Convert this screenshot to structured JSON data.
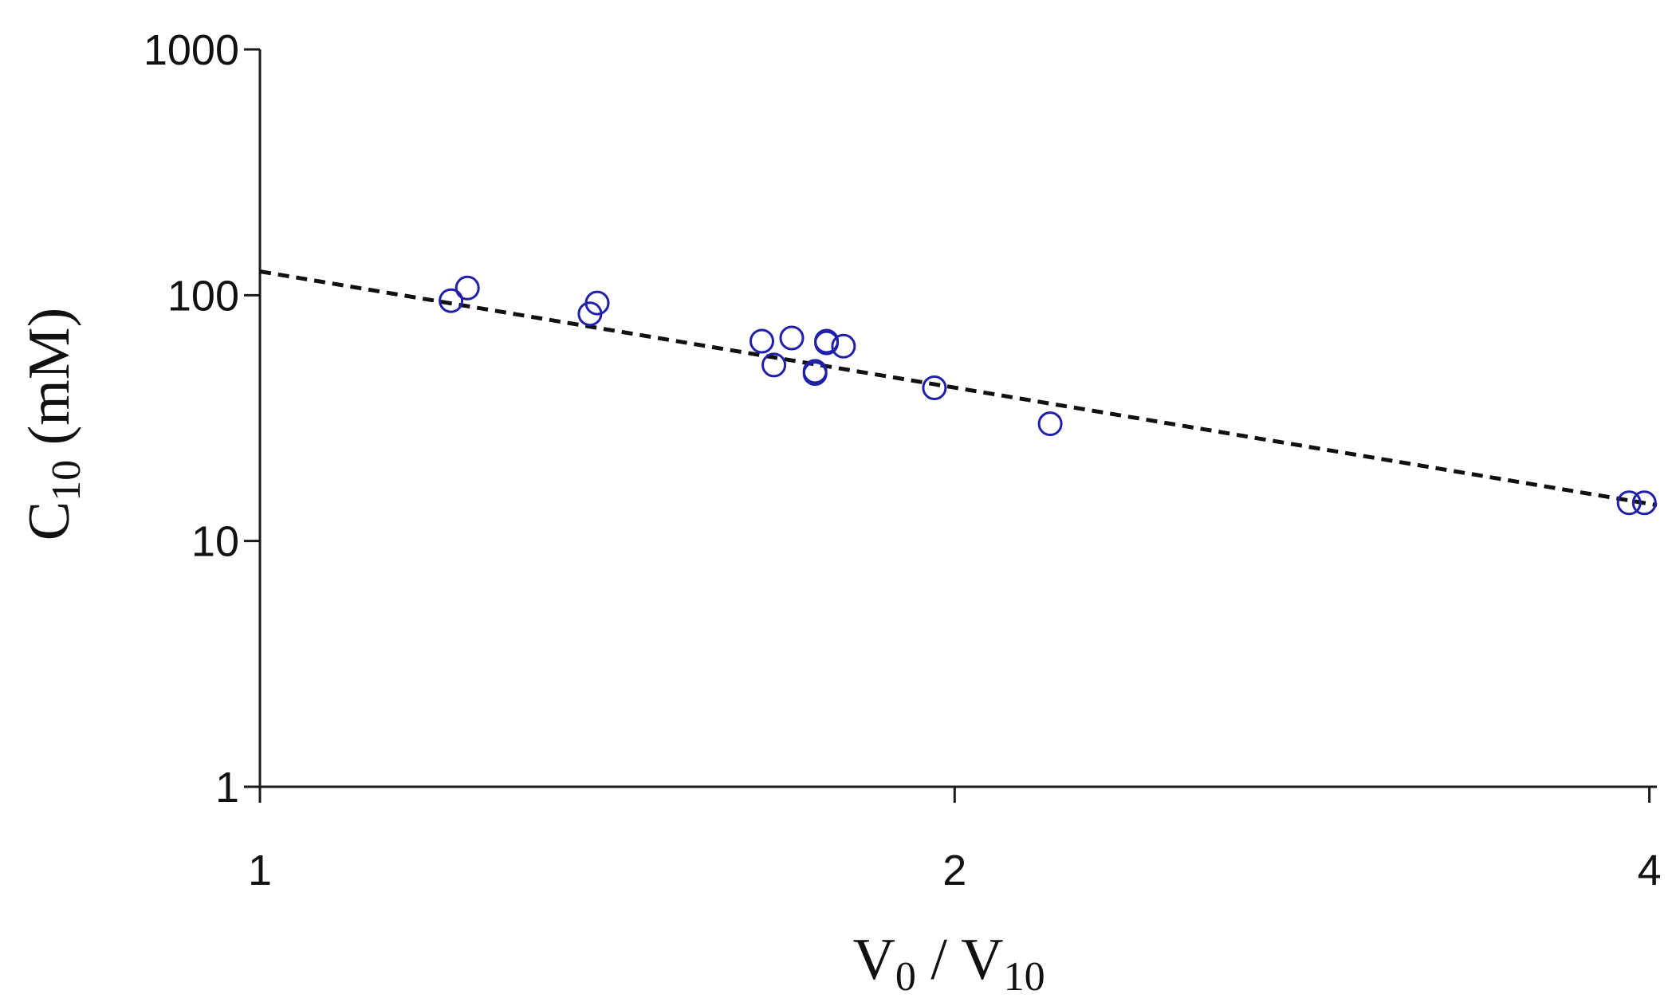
{
  "chart_data": {
    "type": "scatter",
    "title": "",
    "xlabel": {
      "main": "V",
      "sub1": "0",
      "mid": " / V",
      "sub2": "10"
    },
    "ylabel": {
      "main": "C",
      "sub": "10",
      "rest": " (mM)"
    },
    "x_scale": "log",
    "y_scale": "log",
    "xlim": [
      1,
      4.03
    ],
    "ylim": [
      1,
      1000
    ],
    "x_ticks": [
      1,
      2,
      4
    ],
    "x_tick_labels": [
      "1",
      "2",
      "4"
    ],
    "y_ticks": [
      1,
      10,
      100,
      1000
    ],
    "y_tick_labels": [
      "1",
      "10",
      "100",
      "1000"
    ],
    "grid": false,
    "legend": "none",
    "marker_color": "#1f1fa8",
    "series": [
      {
        "marker": "open-circle",
        "points": [
          {
            "x": 1.21,
            "y": 95
          },
          {
            "x": 1.23,
            "y": 107
          },
          {
            "x": 1.39,
            "y": 84
          },
          {
            "x": 1.4,
            "y": 93
          },
          {
            "x": 1.65,
            "y": 65
          },
          {
            "x": 1.67,
            "y": 52
          },
          {
            "x": 1.7,
            "y": 67
          },
          {
            "x": 1.74,
            "y": 48
          },
          {
            "x": 1.74,
            "y": 49
          },
          {
            "x": 1.76,
            "y": 64
          },
          {
            "x": 1.76,
            "y": 65
          },
          {
            "x": 1.79,
            "y": 62
          },
          {
            "x": 1.96,
            "y": 42
          },
          {
            "x": 2.2,
            "y": 30
          },
          {
            "x": 3.92,
            "y": 14.3
          },
          {
            "x": 3.98,
            "y": 14.3
          }
        ]
      }
    ],
    "trendline": {
      "style": "dashed",
      "color": "#111111",
      "points": [
        {
          "x": 1.0,
          "y": 125
        },
        {
          "x": 4.03,
          "y": 14
        }
      ]
    }
  }
}
